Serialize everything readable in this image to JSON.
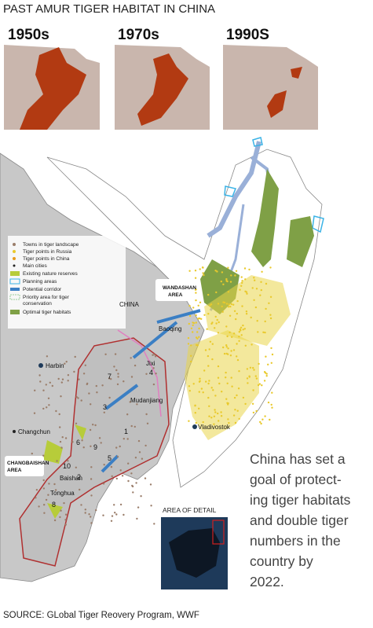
{
  "header": {
    "title": "PAST AMUR TIGER HABITAT IN CHINA"
  },
  "history_maps": [
    "1950s",
    "1970s",
    "1990S"
  ],
  "legend": [
    "Towns in tiger landscape",
    "Tiger points in Russia",
    "Tiger points in China",
    "Main cities",
    "Existing nature reserves",
    "Planning areas",
    "Potential corridor",
    "Priority area for tiger",
    "conservation",
    "Optimal tiger habitats"
  ],
  "map": {
    "labels": [
      "CHINA",
      "WANDASHAN",
      "AREA",
      "Baoqing",
      "Jixi",
      "4",
      "Harbin",
      "7",
      "3",
      "Mudanjiang",
      "1",
      "Vladivostok",
      "Changchun",
      "CHANGBAISHAN",
      "AREA",
      "6",
      "9",
      "5",
      "10",
      "2",
      "Baishan",
      "Tonghua",
      "8"
    ],
    "inset_title": "AREA OF DETAIL"
  },
  "note": [
    "China has set a",
    "goal of protect-",
    "ing tiger habitats",
    "and double tiger",
    "numbers in the",
    "country by",
    "2022."
  ],
  "source": "SOURCE: GLobal Tiger Reovery Program, WWF"
}
